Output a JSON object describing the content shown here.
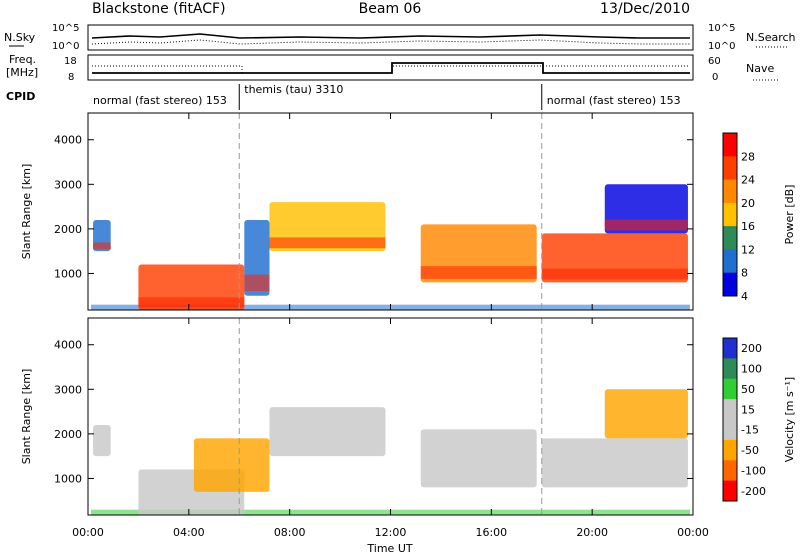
{
  "header": {
    "station": "Blackstone (fitACF)",
    "beam": "Beam 06",
    "date": "13/Dec/2010"
  },
  "noise_panel": {
    "left_label": "N.Sky",
    "right_label": "N.Search",
    "left_ticks": [
      "10^5",
      "10^0"
    ],
    "right_ticks": [
      "10^5",
      "10^0"
    ]
  },
  "freq_panel": {
    "left_label_1": "Freq.",
    "left_label_2": "[MHz]",
    "right_label": "Nave",
    "left_ticks": [
      "18",
      "8"
    ],
    "right_ticks": [
      "60",
      "0"
    ]
  },
  "cpid": {
    "label": "CPID",
    "segments": [
      {
        "name": "normal (fast stereo) 153",
        "start_hour": 0,
        "end_hour": 6
      },
      {
        "name": "themis (tau) 3310",
        "start_hour": 6,
        "end_hour": 18
      },
      {
        "name": "normal (fast stereo) 153",
        "start_hour": 18,
        "end_hour": 24
      }
    ]
  },
  "chart_data": [
    {
      "type": "heatmap",
      "title": "Power",
      "ylabel": "Slant Range [km]",
      "ylim": [
        180,
        4600
      ],
      "yticks": [
        1000,
        2000,
        3000,
        4000
      ],
      "colorbar": {
        "label": "Power [dB]",
        "ticks": [
          "28",
          "24",
          "20",
          "16",
          "12",
          "8",
          "4"
        ],
        "colors": [
          "#ff0000",
          "#ff4000",
          "#ff8800",
          "#ffc000",
          "#2e8b57",
          "#1f6fd0",
          "#0000e0"
        ]
      },
      "regions": [
        {
          "start_hour": 0.2,
          "end_hour": 0.9,
          "range_low": 1500,
          "range_high": 2200,
          "level": "8"
        },
        {
          "start_hour": 2.0,
          "end_hour": 6.2,
          "range_low": 180,
          "range_high": 1200,
          "level": "24"
        },
        {
          "start_hour": 6.2,
          "end_hour": 7.2,
          "range_low": 500,
          "range_high": 2200,
          "level": "8"
        },
        {
          "start_hour": 7.2,
          "end_hour": 11.8,
          "range_low": 1500,
          "range_high": 2600,
          "level": "16"
        },
        {
          "start_hour": 13.2,
          "end_hour": 17.8,
          "range_low": 800,
          "range_high": 2100,
          "level": "20"
        },
        {
          "start_hour": 18.0,
          "end_hour": 23.8,
          "range_low": 800,
          "range_high": 1900,
          "level": "24"
        },
        {
          "start_hour": 20.5,
          "end_hour": 23.8,
          "range_low": 1900,
          "range_high": 3000,
          "level": "4"
        }
      ],
      "ground_scatter_band": {
        "range_low": 180,
        "range_high": 300
      }
    },
    {
      "type": "heatmap",
      "title": "Velocity",
      "ylabel": "Slant Range [km]",
      "ylim": [
        180,
        4600
      ],
      "yticks": [
        1000,
        2000,
        3000,
        4000
      ],
      "colorbar": {
        "label": "Velocity [m s⁻¹]",
        "ticks": [
          "200",
          "100",
          "50",
          "15",
          "-15",
          "-50",
          "-100",
          "-200"
        ],
        "colors": [
          "#2030d0",
          "#2e8b57",
          "#32cd32",
          "#c8c8c8",
          "#c8c8c8",
          "#ffa500",
          "#ff6600",
          "#ff0000"
        ]
      },
      "regions": [
        {
          "start_hour": 0.2,
          "end_hour": 0.9,
          "range_low": 1500,
          "range_high": 2200,
          "level": "15"
        },
        {
          "start_hour": 2.0,
          "end_hour": 6.2,
          "range_low": 180,
          "range_high": 1200,
          "level": "15"
        },
        {
          "start_hour": 4.2,
          "end_hour": 7.2,
          "range_low": 700,
          "range_high": 1900,
          "level": "-50"
        },
        {
          "start_hour": 7.2,
          "end_hour": 11.8,
          "range_low": 1500,
          "range_high": 2600,
          "level": "15"
        },
        {
          "start_hour": 13.2,
          "end_hour": 17.8,
          "range_low": 800,
          "range_high": 2100,
          "level": "15"
        },
        {
          "start_hour": 18.0,
          "end_hour": 23.8,
          "range_low": 800,
          "range_high": 1900,
          "level": "15"
        },
        {
          "start_hour": 20.5,
          "end_hour": 23.8,
          "range_low": 1900,
          "range_high": 3000,
          "level": "-50"
        }
      ],
      "ground_scatter_band": {
        "range_low": 180,
        "range_high": 300
      }
    }
  ],
  "x_axis": {
    "label": "Time UT",
    "ticks": [
      "00:00",
      "04:00",
      "08:00",
      "12:00",
      "16:00",
      "20:00",
      "00:00"
    ],
    "range_hours": [
      0,
      24
    ]
  }
}
